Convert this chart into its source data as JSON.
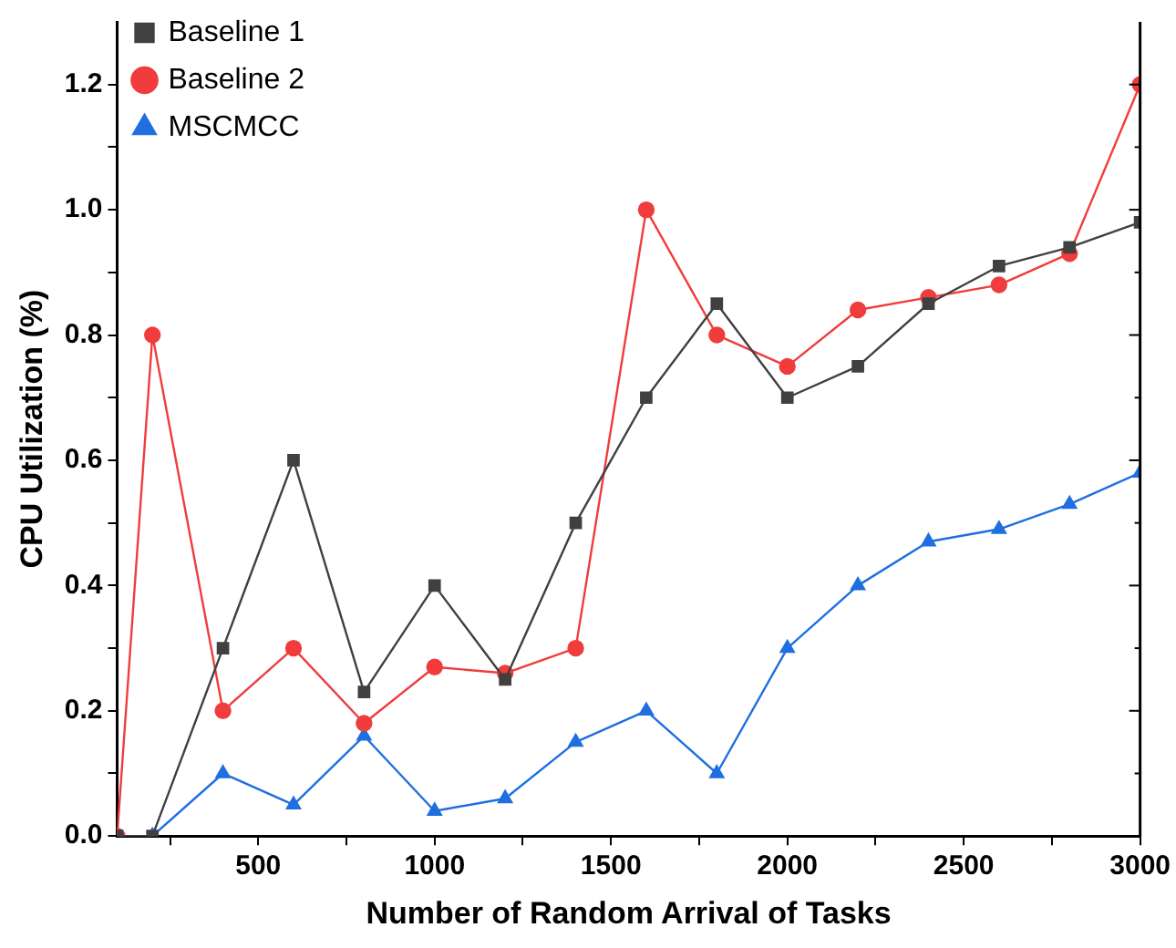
{
  "chart_data": {
    "type": "line",
    "xlabel": "Number of Random Arrival of Tasks",
    "ylabel": "CPU Utilization (%)",
    "x": [
      100,
      200,
      400,
      600,
      800,
      1000,
      1200,
      1400,
      1600,
      1800,
      2000,
      2200,
      2400,
      2600,
      2800,
      3000
    ],
    "xlim": [
      100,
      3000
    ],
    "xticks": [
      {
        "value": 250,
        "label": null
      },
      500,
      {
        "value": 750,
        "label": null
      },
      1000,
      {
        "value": 1250,
        "label": null
      },
      1500,
      {
        "value": 1750,
        "label": null
      },
      2000,
      {
        "value": 2250,
        "label": null
      },
      2500,
      {
        "value": 2750,
        "label": null
      },
      3000
    ],
    "ylim": [
      0,
      1.3
    ],
    "yticks": [
      {
        "value": 0,
        "label": "0.0"
      },
      {
        "value": 0.1,
        "label": null
      },
      0.2,
      {
        "value": 0.3,
        "label": null
      },
      0.4,
      {
        "value": 0.5,
        "label": null
      },
      0.6,
      {
        "value": 0.7,
        "label": null
      },
      0.8,
      {
        "value": 0.9,
        "label": null
      },
      {
        "value": 1,
        "label": "1.0"
      },
      {
        "value": 1.1,
        "label": null
      },
      1.2
    ],
    "grid": false,
    "legend": "top left",
    "line_style": "solid",
    "series": [
      {
        "name": "Baseline 1",
        "color": "#404040",
        "marker": "square",
        "values": [
          0,
          0,
          0.3,
          0.6,
          0.23,
          0.4,
          0.25,
          0.5,
          0.7,
          0.85,
          0.7,
          0.75,
          0.85,
          0.91,
          0.94,
          0.98
        ]
      },
      {
        "name": "Baseline 2",
        "color": "#f03c3c",
        "marker": "circle",
        "values": [
          0,
          0.8,
          0.2,
          0.3,
          0.18,
          0.27,
          0.26,
          0.3,
          1.0,
          0.8,
          0.75,
          0.84,
          0.86,
          0.88,
          0.93,
          1.2
        ]
      },
      {
        "name": "MSCMCC",
        "color": "#1f6fe0",
        "marker": "triangle",
        "values": [
          0,
          0,
          0.1,
          0.05,
          0.16,
          0.04,
          0.06,
          0.15,
          0.2,
          0.1,
          0.3,
          0.4,
          0.47,
          0.49,
          0.53,
          0.58
        ]
      }
    ]
  }
}
